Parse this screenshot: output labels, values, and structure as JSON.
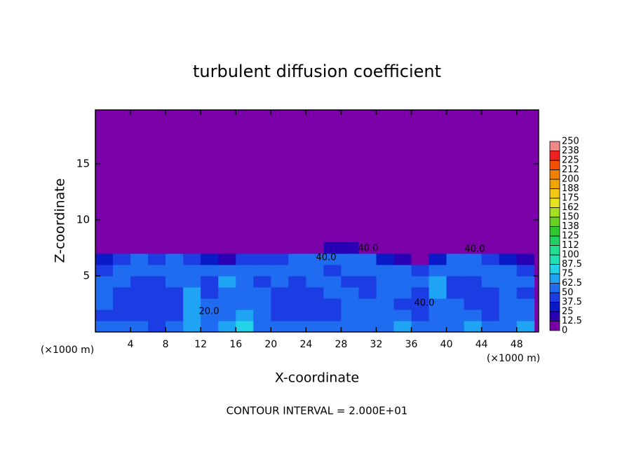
{
  "chart_data": {
    "type": "contour",
    "title": "turbulent diffusion coefficient",
    "xlabel": "X-coordinate",
    "ylabel": "Z-coordinate",
    "x_unit": "(×1000 m)",
    "y_unit": "(×1000 m)",
    "footer": "CONTOUR INTERVAL = 2.000E+01",
    "xlim": [
      0,
      50.5
    ],
    "ylim": [
      0,
      19.8
    ],
    "xticks": [
      4,
      8,
      12,
      16,
      20,
      24,
      28,
      32,
      36,
      40,
      44,
      48
    ],
    "yticks": [
      5,
      10,
      15
    ],
    "levels": [
      0,
      12.5,
      25,
      37.5,
      50,
      62.5,
      75,
      87.5,
      100,
      112,
      125,
      138,
      150,
      162,
      175,
      188,
      200,
      212,
      225,
      238,
      250
    ],
    "colors": [
      "#7a00a8",
      "#2a00b4",
      "#0a1ac8",
      "#1c3de4",
      "#1f6cf0",
      "#1ea4f2",
      "#22d2e8",
      "#20e0b4",
      "#20e090",
      "#22d060",
      "#30c830",
      "#64d020",
      "#a4e020",
      "#e4e420",
      "#f2c810",
      "#f2a400",
      "#f28000",
      "#f25000",
      "#f02020",
      "#f08888"
    ],
    "contour_labels": [
      {
        "value": 40,
        "label": "40.0"
      },
      {
        "value": 40,
        "label": "40.0"
      },
      {
        "value": 40,
        "label": "40.0"
      },
      {
        "value": 40,
        "label": "40.0"
      },
      {
        "value": 20,
        "label": "20.0"
      }
    ],
    "field": {
      "x": [
        1,
        3,
        5,
        7,
        9,
        11,
        13,
        15,
        17,
        19,
        21,
        23,
        25,
        27,
        29,
        31,
        33,
        35,
        37,
        39,
        41,
        43,
        45,
        47,
        49
      ],
      "y": [
        0.5,
        1.5,
        2.5,
        3.5,
        4.5,
        5.5,
        6.5,
        7.5
      ],
      "z": [
        [
          55,
          60,
          50,
          45,
          55,
          70,
          60,
          65,
          75,
          60,
          55,
          50,
          55,
          60,
          50,
          55,
          60,
          65,
          50,
          55,
          60,
          65,
          55,
          60,
          65
        ],
        [
          45,
          45,
          40,
          40,
          45,
          70,
          60,
          55,
          65,
          50,
          45,
          45,
          42,
          45,
          50,
          55,
          60,
          50,
          45,
          60,
          62,
          50,
          45,
          60,
          55
        ],
        [
          50,
          45,
          40,
          40,
          45,
          70,
          55,
          50,
          60,
          55,
          45,
          40,
          40,
          45,
          55,
          50,
          55,
          45,
          45,
          60,
          50,
          40,
          45,
          55,
          50
        ],
        [
          55,
          45,
          40,
          40,
          45,
          65,
          45,
          60,
          55,
          50,
          45,
          40,
          45,
          60,
          50,
          45,
          50,
          50,
          45,
          65,
          45,
          40,
          45,
          60,
          45
        ],
        [
          60,
          50,
          40,
          40,
          50,
          60,
          45,
          65,
          50,
          45,
          50,
          45,
          55,
          55,
          45,
          45,
          55,
          50,
          55,
          65,
          45,
          45,
          50,
          60,
          50
        ],
        [
          45,
          55,
          50,
          50,
          55,
          55,
          50,
          50,
          60,
          55,
          55,
          60,
          50,
          45,
          55,
          60,
          55,
          55,
          45,
          55,
          50,
          50,
          55,
          50,
          40
        ],
        [
          30,
          45,
          50,
          45,
          50,
          40,
          30,
          20,
          40,
          45,
          45,
          50,
          50,
          50,
          55,
          60,
          35,
          15,
          10,
          35,
          50,
          50,
          45,
          30,
          20
        ],
        [
          0,
          5,
          10,
          10,
          5,
          0,
          0,
          0,
          0,
          0,
          0,
          5,
          10,
          15,
          15,
          10,
          0,
          0,
          0,
          0,
          5,
          10,
          5,
          0,
          0
        ]
      ]
    }
  }
}
